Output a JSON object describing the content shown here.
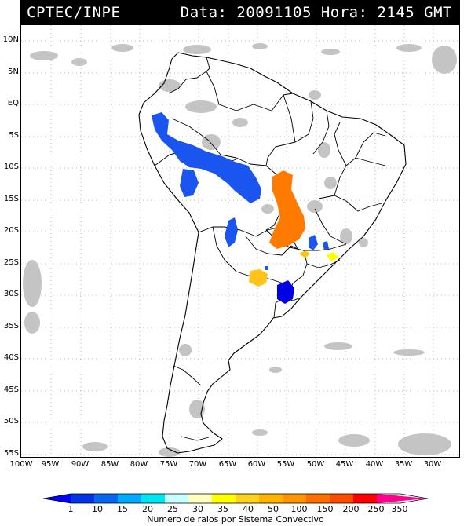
{
  "header": {
    "source": "CPTEC/INPE",
    "info": "Data: 20091105 Hora: 2145 GMT"
  },
  "lat_labels": [
    "10N",
    "5N",
    "EQ",
    "5S",
    "10S",
    "15S",
    "20S",
    "25S",
    "30S",
    "35S",
    "40S",
    "45S",
    "50S",
    "55S"
  ],
  "lon_labels": [
    "100W",
    "95W",
    "90W",
    "85W",
    "80W",
    "75W",
    "70W",
    "65W",
    "60W",
    "55W",
    "50W",
    "45W",
    "40W",
    "35W",
    "30W"
  ],
  "legend": {
    "ticks": [
      "1",
      "10",
      "15",
      "20",
      "25",
      "30",
      "35",
      "40",
      "50",
      "100",
      "150",
      "200",
      "250",
      "350"
    ],
    "colors": [
      "#0000ff",
      "#0033e6",
      "#0a66ee",
      "#00aaff",
      "#00e6f0",
      "#c8ffff",
      "#ffffc0",
      "#ffff00",
      "#ffd21e",
      "#ffb400",
      "#ff9600",
      "#ff6e00",
      "#ff4b00",
      "#ff0000",
      "#ff0090"
    ],
    "caption": "Numero de raios por Sistema Convectivo"
  }
}
